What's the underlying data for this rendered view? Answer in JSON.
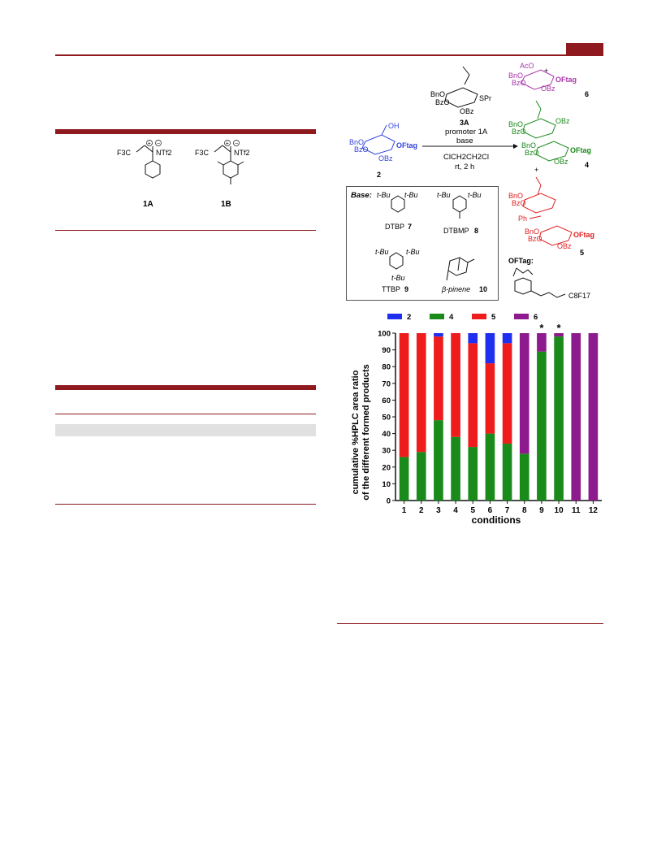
{
  "compounds_1": {
    "label_1A": "1A",
    "label_1B": "1B",
    "cf3_a": "F3C",
    "cf3_b": "F3C",
    "ntf2_a": "NTf2",
    "ntf2_b": "NTf2",
    "plus": "+",
    "minus": "−"
  },
  "scheme": {
    "donor_label": "3A",
    "donor_groups": [
      "BnO",
      "BzO",
      "OBz",
      "SPr"
    ],
    "reagents": [
      "promoter 1A",
      "base",
      "ClCH2CH2Cl",
      "rt, 2 h"
    ],
    "acceptor_label": "2",
    "acceptor_groups": [
      "OH",
      "BnO",
      "BzO",
      "OBz",
      "OFtag"
    ],
    "product_6_label": "6",
    "product_6_groups": [
      "AcO",
      "BnO",
      "BzO",
      "OBz",
      "OFtag"
    ],
    "product_4_label": "4",
    "product_4_groups": [
      "BnO",
      "BzO",
      "OBz",
      "BnO",
      "BzO",
      "OBz",
      "OFtag"
    ],
    "product_5_label": "5",
    "product_5_groups": [
      "BnO",
      "BzO",
      "Ph",
      "BnO",
      "BzO",
      "OBz",
      "OFtag"
    ],
    "plus_sign": "+",
    "ofTag_title": "OFTag:",
    "ofTag_chain": "C8F17",
    "colors": {
      "acceptor": "#3344dd",
      "product6": "#aa33aa",
      "product4": "#1a8a1a",
      "product5": "#e02020"
    }
  },
  "base_box": {
    "title": "Base:",
    "items": [
      {
        "name": "DTBP",
        "number": "7",
        "sub": "t-Bu"
      },
      {
        "name": "DTBMP",
        "number": "8",
        "sub": "t-Bu"
      },
      {
        "name": "TTBP",
        "number": "9",
        "sub": "t-Bu"
      },
      {
        "name": "β-pinene",
        "number": "10",
        "sub": ""
      }
    ]
  },
  "chart_data": {
    "type": "bar",
    "stacked": true,
    "categories": [
      "1",
      "2",
      "3",
      "4",
      "5",
      "6",
      "7",
      "8",
      "9",
      "10",
      "11",
      "12"
    ],
    "series": [
      {
        "name": "4",
        "color": "#1a8a1a",
        "values": [
          26,
          29,
          48,
          38,
          32,
          40,
          34,
          28,
          89,
          98,
          0,
          0
        ]
      },
      {
        "name": "5",
        "color": "#ee1c1c",
        "values": [
          74,
          71,
          50,
          62,
          62,
          42,
          60,
          0,
          0,
          0,
          0,
          0
        ]
      },
      {
        "name": "2",
        "color": "#1f2ff0",
        "values": [
          0,
          0,
          2,
          0,
          6,
          18,
          6,
          0,
          0,
          0,
          0,
          0
        ]
      },
      {
        "name": "6",
        "color": "#8e1b8e",
        "values": [
          0,
          0,
          0,
          0,
          0,
          0,
          0,
          72,
          11,
          2,
          100,
          100
        ]
      }
    ],
    "legend_order": [
      "2",
      "4",
      "5",
      "6"
    ],
    "legend_position": "top",
    "xlabel": "conditions",
    "ylabel_line1": "cumulative %HPLC area ratio",
    "ylabel_line2": "of the different formed products",
    "ylim": [
      0,
      100
    ],
    "yticks": [
      "0",
      "10",
      "20",
      "30",
      "40",
      "50",
      "60",
      "70",
      "80",
      "90",
      "100"
    ],
    "annotations": [
      {
        "category": "9",
        "text": "*"
      },
      {
        "category": "10",
        "text": "*"
      }
    ]
  }
}
